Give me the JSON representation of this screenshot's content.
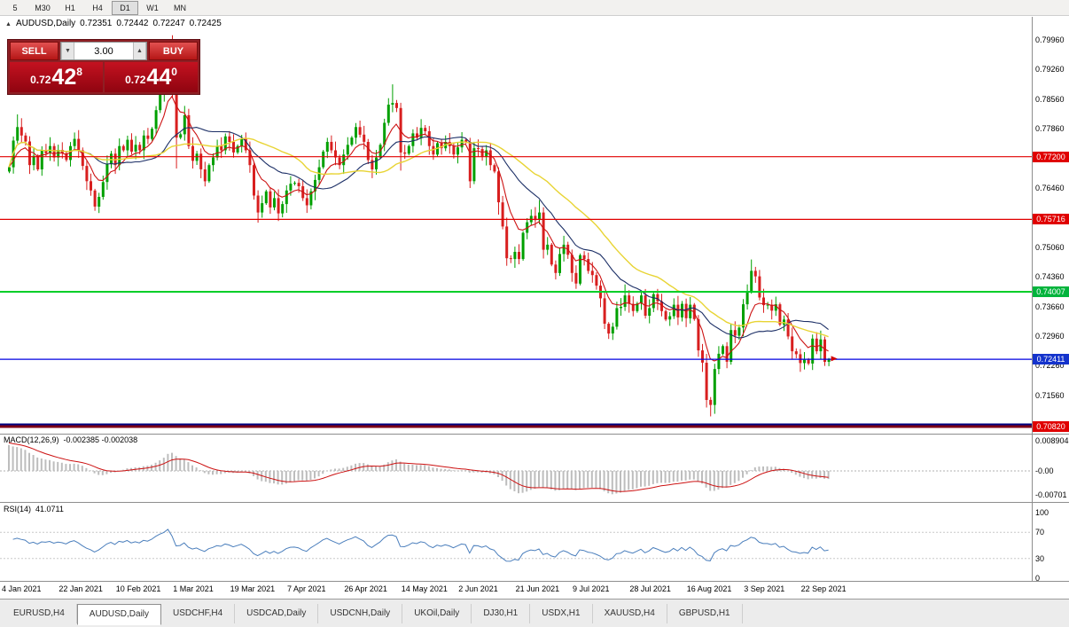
{
  "toolbar": {
    "periods": [
      "5",
      "M30",
      "H1",
      "H4",
      "D1",
      "W1",
      "MN"
    ],
    "active_period": "D1"
  },
  "chart_header": {
    "symbol": "AUDUSD,Daily",
    "open": "0.72351",
    "high": "0.72442",
    "low": "0.72247",
    "close": "0.72425"
  },
  "trade_panel": {
    "sell_label": "SELL",
    "buy_label": "BUY",
    "volume": "3.00",
    "sell_price": {
      "small": "0.72",
      "big": "42",
      "sup": "8"
    },
    "buy_price": {
      "small": "0.72",
      "big": "44",
      "sup": "0"
    }
  },
  "price_axis": {
    "labels": [
      "0.79960",
      "0.79260",
      "0.78560",
      "0.77860",
      "0.76460",
      "0.75060",
      "0.74360",
      "0.73660",
      "0.72960",
      "0.72260",
      "0.71560"
    ]
  },
  "hlines": [
    {
      "price": 0.772,
      "label": "0.77200",
      "color": "#e00000",
      "badge": "#e00000",
      "width": 1.2
    },
    {
      "price": 0.75716,
      "label": "0.75716",
      "color": "#e00000",
      "badge": "#e00000",
      "width": 1.2
    },
    {
      "price": 0.74007,
      "label": "0.74007",
      "color": "#00ce28",
      "badge": "#00b43c",
      "width": 2
    },
    {
      "price": 0.72411,
      "label": "0.72411",
      "color": "#0000e0",
      "badge": "#1433cc",
      "width": 1.2
    },
    {
      "price": 0.70872,
      "color": "#000080",
      "width": 2
    },
    {
      "price": 0.7082,
      "label": "0.70820",
      "color": "#7b0018",
      "badge": "#e00000",
      "width": 3
    }
  ],
  "chart_data": {
    "type": "candlestick",
    "symbol": "AUDUSD",
    "timeframe": "Daily",
    "ohlc_current": {
      "open": 0.72351,
      "high": 0.72442,
      "low": 0.72247,
      "close": 0.72425
    },
    "first_open": 0.7685,
    "up_color": "#00A000",
    "down_color": "#D81F1F",
    "closes": [
      0.7695,
      0.7758,
      0.779,
      0.777,
      0.7756,
      0.77,
      0.7722,
      0.769,
      0.7735,
      0.7728,
      0.7745,
      0.7718,
      0.7736,
      0.7728,
      0.7712,
      0.7745,
      0.7762,
      0.7735,
      0.7698,
      0.7662,
      0.764,
      0.7602,
      0.7625,
      0.766,
      0.7702,
      0.7727,
      0.77,
      0.7745,
      0.7735,
      0.776,
      0.7732,
      0.7748,
      0.7735,
      0.777,
      0.7762,
      0.7786,
      0.783,
      0.7868,
      0.79,
      0.797,
      0.7905,
      0.7765,
      0.7773,
      0.7818,
      0.7745,
      0.771,
      0.7727,
      0.769,
      0.7662,
      0.77,
      0.7718,
      0.7745,
      0.7735,
      0.7768,
      0.7755,
      0.773,
      0.7745,
      0.7762,
      0.7735,
      0.77,
      0.7628,
      0.7588,
      0.761,
      0.7638,
      0.76,
      0.7622,
      0.7586,
      0.7608,
      0.764,
      0.7656,
      0.7658,
      0.765,
      0.7622,
      0.7605,
      0.7638,
      0.7665,
      0.7695,
      0.7732,
      0.7755,
      0.7735,
      0.7718,
      0.77,
      0.7725,
      0.7748,
      0.7765,
      0.779,
      0.7772,
      0.7755,
      0.7712,
      0.769,
      0.7718,
      0.7748,
      0.78,
      0.7843,
      0.7847,
      0.7835,
      0.773,
      0.7727,
      0.7745,
      0.7775,
      0.7765,
      0.7788,
      0.778,
      0.7745,
      0.7725,
      0.7752,
      0.774,
      0.7755,
      0.7745,
      0.7725,
      0.7742,
      0.776,
      0.7755,
      0.7662,
      0.774,
      0.7738,
      0.772,
      0.7735,
      0.77,
      0.7685,
      0.7612,
      0.7555,
      0.748,
      0.7478,
      0.7495,
      0.7478,
      0.754,
      0.7565,
      0.758,
      0.757,
      0.7588,
      0.75,
      0.7512,
      0.7465,
      0.7445,
      0.749,
      0.7512,
      0.7488,
      0.7445,
      0.742,
      0.7487,
      0.7478,
      0.745,
      0.744,
      0.7415,
      0.7385,
      0.7325,
      0.7302,
      0.7318,
      0.7362,
      0.7365,
      0.7392,
      0.7372,
      0.7355,
      0.7373,
      0.7392,
      0.7344,
      0.7362,
      0.7395,
      0.7378,
      0.7355,
      0.7335,
      0.7343,
      0.737,
      0.734,
      0.7372,
      0.7338,
      0.737,
      0.7336,
      0.7262,
      0.7233,
      0.7145,
      0.7133,
      0.7218,
      0.7254,
      0.7272,
      0.7235,
      0.731,
      0.7297,
      0.7316,
      0.7371,
      0.74,
      0.745,
      0.7437,
      0.7387,
      0.7369,
      0.737,
      0.7356,
      0.7371,
      0.7323,
      0.7335,
      0.7295,
      0.726,
      0.7253,
      0.7232,
      0.724,
      0.7231,
      0.729,
      0.726,
      0.7288,
      0.7235,
      0.72425
    ],
    "extremes": {
      "2": {
        "h": 0.782
      },
      "21": {
        "l": 0.7592
      },
      "39": {
        "h": 0.7995
      },
      "40": {
        "h": 0.8007,
        "l": 0.786
      },
      "41": {
        "l": 0.7692
      },
      "43": {
        "h": 0.784
      },
      "61": {
        "l": 0.7564
      },
      "94": {
        "h": 0.7891
      },
      "96": {
        "l": 0.7687
      },
      "113": {
        "l": 0.7646
      },
      "120": {
        "l": 0.7583
      },
      "130": {
        "h": 0.7617
      },
      "147": {
        "l": 0.7289
      },
      "151": {
        "h": 0.7418
      },
      "170": {
        "l": 0.7211
      },
      "172": {
        "l": 0.7106
      },
      "182": {
        "h": 0.7477
      },
      "195": {
        "l": 0.7217
      },
      "201": {
        "h": 0.72442,
        "l": 0.72247
      }
    },
    "x_labels": [
      "4 Jan 2021",
      "22 Jan 2021",
      "10 Feb 2021",
      "1 Mar 2021",
      "19 Mar 2021",
      "7 Apr 2021",
      "26 Apr 2021",
      "14 May 2021",
      "2 Jun 2021",
      "21 Jun 2021",
      "9 Jul 2021",
      "28 Jul 2021",
      "16 Aug 2021",
      "3 Sep 2021",
      "22 Sep 2021"
    ],
    "label_step": 14,
    "ma_lines": [
      {
        "period": 8,
        "type": "ema",
        "color": "#cc1111"
      },
      {
        "period": 20,
        "type": "sma",
        "color": "#1c2f66"
      },
      {
        "period": 34,
        "type": "sma",
        "color": "#e8d434"
      }
    ],
    "macd": {
      "label": "MACD(12,26,9)",
      "values_text": "-0.002385 -0.002038",
      "axis_labels": [
        "0.008904",
        "-0.00",
        "-0.00701"
      ],
      "seed": {
        "ema12": 0.775,
        "ema26": 0.7663,
        "signal": 0.0084
      },
      "bar_color": "#bdbdbd",
      "signal_color": "#cc1111"
    },
    "rsi": {
      "label": "RSI(14)",
      "value": "41.0711",
      "axis_labels": [
        "100",
        "70",
        "30",
        "0"
      ],
      "axis_values": [
        100,
        70,
        30,
        0
      ],
      "levels": [
        70,
        30
      ],
      "color": "#4a7ebc"
    }
  },
  "bottom_tabs": {
    "items": [
      "EURUSD,H4",
      "AUDUSD,Daily",
      "USDCHF,H4",
      "USDCAD,Daily",
      "USDCNH,Daily",
      "UKOil,Daily",
      "DJ30,H1",
      "USDX,H1",
      "XAUUSD,H4",
      "GBPUSD,H1"
    ],
    "active": "AUDUSD,Daily"
  }
}
